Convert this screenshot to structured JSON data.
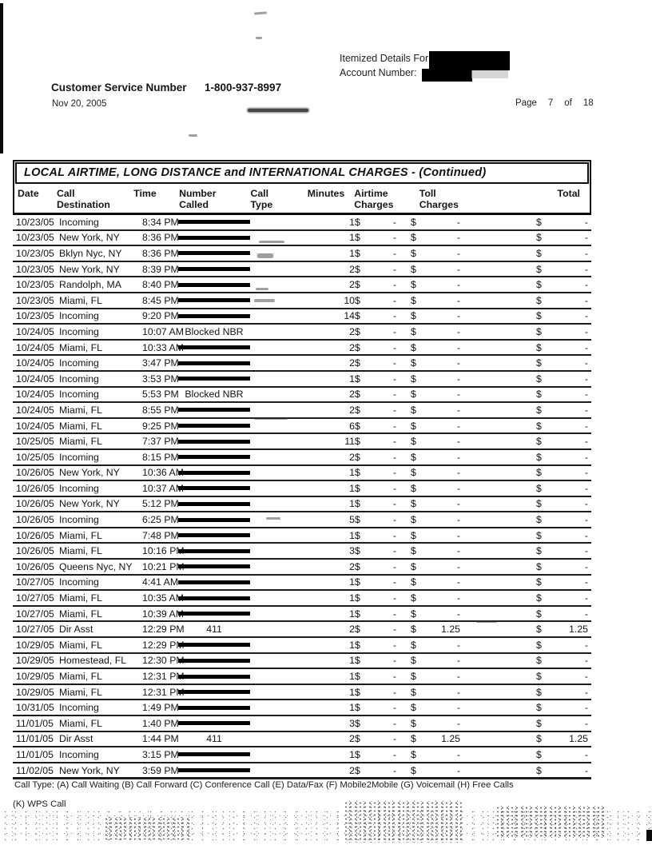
{
  "header": {
    "itemized_label": "Itemized Details For:",
    "account_label": "Account Number:",
    "customer_service_label": "Customer Service Number",
    "customer_service_number": "1-800-937-8997",
    "statement_date": "Nov 20, 2005",
    "page_label": "Page",
    "page_number": "7",
    "of_label": "of",
    "page_total": "18"
  },
  "table": {
    "title": "LOCAL AIRTIME, LONG DISTANCE and INTERNATIONAL CHARGES  - (Continued)",
    "currency": "$",
    "columns": [
      {
        "l1": "Date",
        "l2": ""
      },
      {
        "l1": "Call",
        "l2": "Destination"
      },
      {
        "l1": "Time",
        "l2": ""
      },
      {
        "l1": "Number",
        "l2": "Called"
      },
      {
        "l1": "Call",
        "l2": "Type"
      },
      {
        "l1": "Minutes",
        "l2": ""
      },
      {
        "l1": "Airtime",
        "l2": "Charges"
      },
      {
        "l1": "Toll",
        "l2": "Charges"
      },
      {
        "l1": "Total",
        "l2": ""
      }
    ],
    "rows": [
      {
        "date": "10/23/05",
        "destination": "Incoming",
        "time": "8:34 PM",
        "number": "",
        "redacted": true,
        "minutes": "1",
        "airtime": "-",
        "toll": "-",
        "total": "-"
      },
      {
        "date": "10/23/05",
        "destination": "New York, NY",
        "time": "8:36 PM",
        "number": "",
        "redacted": true,
        "minutes": "1",
        "airtime": "-",
        "toll": "-",
        "total": "-"
      },
      {
        "date": "10/23/05",
        "destination": "Bklyn Nyc, NY",
        "time": "8:36 PM",
        "number": "",
        "redacted": true,
        "minutes": "1",
        "airtime": "-",
        "toll": "-",
        "total": "-"
      },
      {
        "date": "10/23/05",
        "destination": "New York, NY",
        "time": "8:39 PM",
        "number": "",
        "redacted": true,
        "minutes": "2",
        "airtime": "-",
        "toll": "-",
        "total": "-"
      },
      {
        "date": "10/23/05",
        "destination": "Randolph, MA",
        "time": "8:40 PM",
        "number": "",
        "redacted": true,
        "minutes": "2",
        "airtime": "-",
        "toll": "-",
        "total": "-"
      },
      {
        "date": "10/23/05",
        "destination": "Miami, FL",
        "time": "8:45 PM",
        "number": "",
        "redacted": true,
        "minutes": "10",
        "airtime": "-",
        "toll": "-",
        "total": "-"
      },
      {
        "date": "10/23/05",
        "destination": "Incoming",
        "time": "9:20 PM",
        "number": "",
        "redacted": true,
        "minutes": "14",
        "airtime": "-",
        "toll": "-",
        "total": "-"
      },
      {
        "date": "10/24/05",
        "destination": "Incoming",
        "time": "10:07 AM",
        "number": "Blocked NBR",
        "redacted": false,
        "minutes": "2",
        "airtime": "-",
        "toll": "-",
        "total": "-"
      },
      {
        "date": "10/24/05",
        "destination": "Miami, FL",
        "time": "10:33 AM",
        "number": "",
        "redacted": true,
        "minutes": "2",
        "airtime": "-",
        "toll": "-",
        "total": "-"
      },
      {
        "date": "10/24/05",
        "destination": "Incoming",
        "time": "3:47 PM",
        "number": "",
        "redacted": true,
        "minutes": "2",
        "airtime": "-",
        "toll": "-",
        "total": "-"
      },
      {
        "date": "10/24/05",
        "destination": "Incoming",
        "time": "3:53 PM",
        "number": "",
        "redacted": true,
        "minutes": "1",
        "airtime": "-",
        "toll": "-",
        "total": "-"
      },
      {
        "date": "10/24/05",
        "destination": "Incoming",
        "time": "5:53 PM",
        "number": "Blocked NBR",
        "redacted": false,
        "minutes": "2",
        "airtime": "-",
        "toll": "-",
        "total": "-"
      },
      {
        "date": "10/24/05",
        "destination": "Miami, FL",
        "time": "8:55 PM",
        "number": "",
        "redacted": true,
        "minutes": "2",
        "airtime": "-",
        "toll": "-",
        "total": "-"
      },
      {
        "date": "10/24/05",
        "destination": "Miami, FL",
        "time": "9:25 PM",
        "number": "",
        "redacted": true,
        "minutes": "6",
        "airtime": "-",
        "toll": "-",
        "total": "-"
      },
      {
        "date": "10/25/05",
        "destination": "Miami, FL",
        "time": "7:37 PM",
        "number": "",
        "redacted": true,
        "minutes": "11",
        "airtime": "-",
        "toll": "-",
        "total": "-"
      },
      {
        "date": "10/25/05",
        "destination": "Incoming",
        "time": "8:15 PM",
        "number": "",
        "redacted": true,
        "minutes": "2",
        "airtime": "-",
        "toll": "-",
        "total": "-"
      },
      {
        "date": "10/26/05",
        "destination": "New York, NY",
        "time": "10:36 AM",
        "number": "",
        "redacted": true,
        "minutes": "1",
        "airtime": "-",
        "toll": "-",
        "total": "-"
      },
      {
        "date": "10/26/05",
        "destination": "Incoming",
        "time": "10:37 AM",
        "number": "",
        "redacted": true,
        "minutes": "1",
        "airtime": "-",
        "toll": "-",
        "total": "-"
      },
      {
        "date": "10/26/05",
        "destination": "New York, NY",
        "time": "5:12 PM",
        "number": "",
        "redacted": true,
        "minutes": "1",
        "airtime": "-",
        "toll": "-",
        "total": "-"
      },
      {
        "date": "10/26/05",
        "destination": "Incoming",
        "time": "6:25 PM",
        "number": "",
        "redacted": true,
        "minutes": "5",
        "airtime": "-",
        "toll": "-",
        "total": "-"
      },
      {
        "date": "10/26/05",
        "destination": "Miami, FL",
        "time": "7:48 PM",
        "number": "",
        "redacted": true,
        "minutes": "1",
        "airtime": "-",
        "toll": "-",
        "total": "-"
      },
      {
        "date": "10/26/05",
        "destination": "Miami, FL",
        "time": "10:16 PM",
        "number": "",
        "redacted": true,
        "minutes": "3",
        "airtime": "-",
        "toll": "-",
        "total": "-"
      },
      {
        "date": "10/26/05",
        "destination": "Queens Nyc, NY",
        "time": "10:21 PM",
        "number": "",
        "redacted": true,
        "minutes": "2",
        "airtime": "-",
        "toll": "-",
        "total": "-"
      },
      {
        "date": "10/27/05",
        "destination": "Incoming",
        "time": "4:41 AM",
        "number": "",
        "redacted": true,
        "minutes": "1",
        "airtime": "-",
        "toll": "-",
        "total": "-"
      },
      {
        "date": "10/27/05",
        "destination": "Miami, FL",
        "time": "10:35 AM",
        "number": "",
        "redacted": true,
        "minutes": "1",
        "airtime": "-",
        "toll": "-",
        "total": "-"
      },
      {
        "date": "10/27/05",
        "destination": "Miami, FL",
        "time": "10:39 AM",
        "number": "",
        "redacted": true,
        "minutes": "1",
        "airtime": "-",
        "toll": "-",
        "total": "-"
      },
      {
        "date": "10/27/05",
        "destination": "Dir Asst",
        "time": "12:29 PM",
        "number": "411",
        "redacted": false,
        "minutes": "2",
        "airtime": "-",
        "toll": "1.25",
        "total": "1.25"
      },
      {
        "date": "10/29/05",
        "destination": "Miami, FL",
        "time": "12:29 PM",
        "number": "",
        "redacted": true,
        "minutes": "1",
        "airtime": "-",
        "toll": "-",
        "total": "-"
      },
      {
        "date": "10/29/05",
        "destination": "Homestead, FL",
        "time": "12:30 PM",
        "number": "",
        "redacted": true,
        "minutes": "1",
        "airtime": "-",
        "toll": "-",
        "total": "-"
      },
      {
        "date": "10/29/05",
        "destination": "Miami, FL",
        "time": "12:31 PM",
        "number": "",
        "redacted": true,
        "minutes": "1",
        "airtime": "-",
        "toll": "-",
        "total": "-"
      },
      {
        "date": "10/29/05",
        "destination": "Miami, FL",
        "time": "12:31 PM",
        "number": "",
        "redacted": true,
        "minutes": "1",
        "airtime": "-",
        "toll": "-",
        "total": "-"
      },
      {
        "date": "10/31/05",
        "destination": "Incoming",
        "time": "1:49 PM",
        "number": "",
        "redacted": true,
        "minutes": "1",
        "airtime": "-",
        "toll": "-",
        "total": "-"
      },
      {
        "date": "11/01/05",
        "destination": "Miami, FL",
        "time": "1:40 PM",
        "number": "",
        "redacted": true,
        "minutes": "3",
        "airtime": "-",
        "toll": "-",
        "total": "-"
      },
      {
        "date": "11/01/05",
        "destination": "Dir Asst",
        "time": "1:44 PM",
        "number": "411",
        "redacted": false,
        "minutes": "2",
        "airtime": "-",
        "toll": "1.25",
        "total": "1.25"
      },
      {
        "date": "11/01/05",
        "destination": "Incoming",
        "time": "3:15 PM",
        "number": "",
        "redacted": true,
        "minutes": "1",
        "airtime": "-",
        "toll": "-",
        "total": "-"
      },
      {
        "date": "11/02/05",
        "destination": "New York, NY",
        "time": "3:59 PM",
        "number": "",
        "redacted": true,
        "minutes": "2",
        "airtime": "-",
        "toll": "-",
        "total": "-"
      }
    ]
  },
  "footer": {
    "call_type_legend": "Call Type: (A) Call Waiting (B) Call Forward (C) Conference Call (E) Data/Fax (F) Mobile2Mobile (G) Voicemail (H) Free Calls",
    "wps_legend": "(K) WPS Call"
  }
}
